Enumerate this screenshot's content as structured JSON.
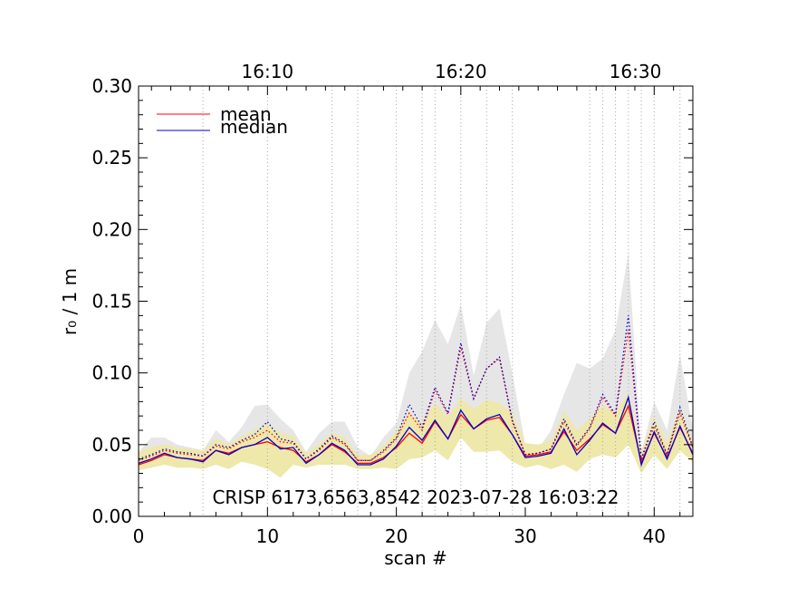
{
  "chart_data": {
    "type": "line",
    "xlabel": "scan #",
    "ylabel": "r₀ / 1 m",
    "xlim": [
      0,
      43
    ],
    "ylim": [
      0,
      0.3
    ],
    "x_ticks": [
      0,
      10,
      20,
      30,
      40
    ],
    "x_tick_labels": [
      "0",
      "10",
      "20",
      "30",
      "40"
    ],
    "y_ticks": [
      0,
      0.05,
      0.1,
      0.15,
      0.2,
      0.25,
      0.3
    ],
    "y_tick_labels": [
      "0.00",
      "0.05",
      "0.10",
      "0.15",
      "0.20",
      "0.25",
      "0.30"
    ],
    "top_axis": {
      "ticks": [
        10,
        25,
        40
      ],
      "labels": [
        "16:10",
        "16:20",
        "16:30"
      ]
    },
    "time_gridlines_x": [
      5,
      10,
      15,
      17,
      20,
      22,
      23,
      25,
      27,
      29,
      35,
      36,
      37,
      38,
      39,
      40,
      42
    ],
    "annotation": "CRISP 6173,6563,8542 2023-07-28 16:03:22",
    "legend_position": "top-left",
    "x": [
      0,
      1,
      2,
      3,
      4,
      5,
      6,
      7,
      8,
      9,
      10,
      11,
      12,
      13,
      14,
      15,
      16,
      17,
      18,
      19,
      20,
      21,
      22,
      23,
      24,
      25,
      26,
      27,
      28,
      29,
      30,
      31,
      32,
      33,
      34,
      35,
      36,
      37,
      38,
      39,
      40,
      41,
      42,
      43
    ],
    "series": [
      {
        "name": "mean",
        "color": "#ff0000",
        "style": "solid",
        "values": [
          0.036,
          0.039,
          0.043,
          0.041,
          0.04,
          0.039,
          0.046,
          0.044,
          0.048,
          0.05,
          0.052,
          0.048,
          0.046,
          0.038,
          0.043,
          0.05,
          0.045,
          0.037,
          0.037,
          0.041,
          0.048,
          0.058,
          0.051,
          0.066,
          0.054,
          0.071,
          0.061,
          0.067,
          0.069,
          0.057,
          0.042,
          0.043,
          0.045,
          0.059,
          0.046,
          0.054,
          0.064,
          0.058,
          0.077,
          0.038,
          0.058,
          0.041,
          0.062,
          0.044
        ]
      },
      {
        "name": "median",
        "color": "#0000cc",
        "style": "solid",
        "values": [
          0.037,
          0.04,
          0.044,
          0.041,
          0.04,
          0.038,
          0.046,
          0.043,
          0.048,
          0.05,
          0.055,
          0.047,
          0.048,
          0.037,
          0.043,
          0.051,
          0.046,
          0.036,
          0.036,
          0.04,
          0.049,
          0.062,
          0.053,
          0.067,
          0.054,
          0.074,
          0.061,
          0.068,
          0.071,
          0.057,
          0.041,
          0.042,
          0.044,
          0.061,
          0.043,
          0.053,
          0.065,
          0.058,
          0.083,
          0.036,
          0.059,
          0.04,
          0.063,
          0.043
        ]
      },
      {
        "color": "#ff0000",
        "style": "dotted",
        "values": [
          0.039,
          0.042,
          0.046,
          0.044,
          0.043,
          0.042,
          0.049,
          0.047,
          0.052,
          0.055,
          0.06,
          0.052,
          0.051,
          0.04,
          0.046,
          0.055,
          0.05,
          0.039,
          0.039,
          0.045,
          0.054,
          0.072,
          0.06,
          0.088,
          0.071,
          0.118,
          0.082,
          0.103,
          0.11,
          0.066,
          0.043,
          0.044,
          0.047,
          0.066,
          0.049,
          0.061,
          0.083,
          0.07,
          0.13,
          0.04,
          0.063,
          0.043,
          0.072,
          0.048
        ]
      },
      {
        "color": "#0000cc",
        "style": "dotted",
        "values": [
          0.04,
          0.043,
          0.047,
          0.045,
          0.044,
          0.042,
          0.05,
          0.048,
          0.053,
          0.057,
          0.066,
          0.054,
          0.052,
          0.04,
          0.047,
          0.056,
          0.051,
          0.039,
          0.039,
          0.046,
          0.055,
          0.078,
          0.062,
          0.09,
          0.072,
          0.121,
          0.082,
          0.103,
          0.111,
          0.067,
          0.043,
          0.044,
          0.047,
          0.068,
          0.05,
          0.062,
          0.085,
          0.071,
          0.14,
          0.04,
          0.066,
          0.043,
          0.076,
          0.048
        ]
      }
    ],
    "bands": [
      {
        "color": "#e6e6e6",
        "lower": [
          0.037,
          0.039,
          0.041,
          0.04,
          0.04,
          0.039,
          0.042,
          0.041,
          0.043,
          0.045,
          0.046,
          0.044,
          0.044,
          0.039,
          0.041,
          0.044,
          0.042,
          0.038,
          0.038,
          0.04,
          0.044,
          0.05,
          0.047,
          0.055,
          0.05,
          0.058,
          0.052,
          0.056,
          0.058,
          0.05,
          0.04,
          0.04,
          0.041,
          0.05,
          0.043,
          0.047,
          0.052,
          0.05,
          0.06,
          0.038,
          0.05,
          0.04,
          0.052,
          0.042
        ],
        "upper": [
          0.045,
          0.055,
          0.055,
          0.05,
          0.048,
          0.046,
          0.06,
          0.052,
          0.062,
          0.077,
          0.078,
          0.068,
          0.06,
          0.045,
          0.058,
          0.066,
          0.066,
          0.048,
          0.042,
          0.055,
          0.065,
          0.1,
          0.115,
          0.137,
          0.12,
          0.148,
          0.098,
          0.135,
          0.145,
          0.1,
          0.05,
          0.047,
          0.06,
          0.085,
          0.107,
          0.103,
          0.11,
          0.13,
          0.184,
          0.045,
          0.08,
          0.06,
          0.113,
          0.06
        ]
      },
      {
        "color": "#eee8aa",
        "lower": [
          0.032,
          0.034,
          0.036,
          0.034,
          0.034,
          0.033,
          0.036,
          0.033,
          0.038,
          0.036,
          0.033,
          0.027,
          0.036,
          0.034,
          0.036,
          0.036,
          0.036,
          0.033,
          0.033,
          0.034,
          0.033,
          0.04,
          0.041,
          0.046,
          0.039,
          0.055,
          0.045,
          0.045,
          0.046,
          0.038,
          0.034,
          0.036,
          0.033,
          0.036,
          0.031,
          0.04,
          0.043,
          0.041,
          0.05,
          0.03,
          0.043,
          0.033,
          0.046,
          0.038
        ],
        "upper": [
          0.045,
          0.048,
          0.05,
          0.048,
          0.047,
          0.046,
          0.054,
          0.05,
          0.056,
          0.06,
          0.065,
          0.058,
          0.056,
          0.044,
          0.05,
          0.058,
          0.055,
          0.043,
          0.043,
          0.049,
          0.06,
          0.072,
          0.065,
          0.079,
          0.069,
          0.082,
          0.075,
          0.081,
          0.079,
          0.072,
          0.051,
          0.05,
          0.053,
          0.073,
          0.06,
          0.068,
          0.077,
          0.072,
          0.086,
          0.046,
          0.07,
          0.052,
          0.076,
          0.052
        ]
      }
    ]
  }
}
